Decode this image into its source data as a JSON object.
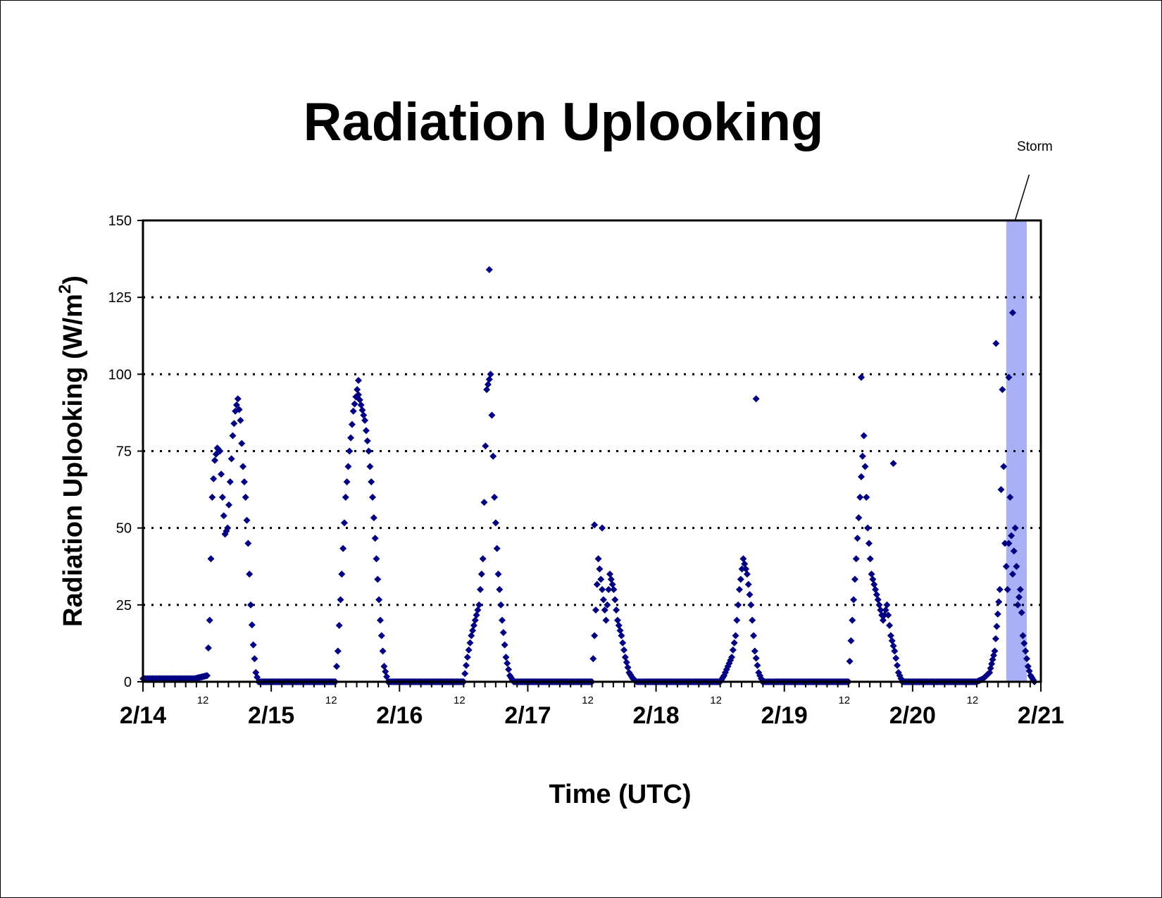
{
  "chart_data": {
    "type": "scatter",
    "title": "Radiation Uplooking",
    "xlabel": "Time (UTC)",
    "ylabel_main": "Radiation Uplooking (W/m",
    "ylabel_sup": "2",
    "ylabel_close": ")",
    "ylim": [
      0,
      150
    ],
    "yticks": [
      "0",
      "25",
      "50",
      "75",
      "100",
      "125",
      "150"
    ],
    "ytick_values": [
      0,
      25,
      50,
      75,
      100,
      125,
      150
    ],
    "xlim_days": [
      0,
      7
    ],
    "date_labels": [
      "2/14",
      "2/15",
      "2/16",
      "2/17",
      "2/18",
      "2/19",
      "2/20",
      "2/21"
    ],
    "hour_label": "12",
    "grid": "dotted horizontal at 25, 50, 75, 100, 125",
    "marker": "diamond",
    "series_color": "#000080",
    "storm_band": {
      "label": "Storm",
      "start_day": 6.73,
      "end_day": 6.89,
      "color": "#aab0f5"
    },
    "series": [
      {
        "values_description": "",
        "x": [
          0.0,
          0.1,
          0.2,
          0.3,
          0.4,
          0.5,
          0.52,
          0.54,
          0.56,
          0.58,
          0.6,
          0.62,
          0.64,
          0.66,
          0.68,
          0.7,
          0.72,
          0.74,
          0.76,
          0.78,
          0.8,
          0.82,
          0.84,
          0.86,
          0.88,
          0.9,
          1.5,
          1.52,
          1.55,
          1.58,
          1.61,
          1.64,
          1.67,
          1.7,
          1.73,
          1.76,
          1.79,
          1.82,
          1.85,
          1.88,
          1.91,
          1.94,
          1.97,
          2.5,
          2.53,
          2.56,
          2.59,
          2.62,
          2.65,
          2.68,
          2.71,
          2.74,
          2.77,
          2.8,
          2.83,
          2.86,
          2.89,
          2.92,
          3.5,
          3.52,
          3.55,
          3.58,
          3.61,
          3.64,
          3.67,
          3.7,
          3.73,
          3.76,
          3.79,
          3.82,
          3.85,
          3.88,
          3.91,
          4.5,
          4.53,
          4.56,
          4.59,
          4.62,
          4.65,
          4.68,
          4.71,
          4.74,
          4.77,
          4.8,
          4.83,
          4.86,
          4.89,
          4.92,
          5.5,
          5.53,
          5.56,
          5.59,
          5.62,
          5.65,
          5.68,
          5.71,
          5.74,
          5.77,
          5.8,
          5.83,
          5.86,
          5.89,
          5.92,
          6.5,
          6.55,
          6.6,
          6.64,
          6.68,
          6.7,
          6.72,
          6.74,
          6.76,
          6.78,
          6.8,
          6.82,
          6.84,
          6.86,
          6.88,
          6.9,
          6.92,
          6.95
        ],
        "y": [
          1,
          1,
          1,
          1,
          1,
          2,
          20,
          60,
          72,
          76,
          75,
          60,
          48,
          50,
          65,
          80,
          88,
          92,
          85,
          70,
          60,
          45,
          25,
          12,
          3,
          0,
          0,
          10,
          35,
          60,
          75,
          88,
          95,
          90,
          85,
          75,
          60,
          40,
          20,
          5,
          0,
          0,
          0,
          0,
          8,
          15,
          20,
          25,
          40,
          95,
          100,
          60,
          35,
          20,
          8,
          2,
          0,
          0,
          0,
          15,
          40,
          30,
          20,
          35,
          30,
          20,
          15,
          8,
          3,
          1,
          0,
          0,
          0,
          0,
          2,
          5,
          8,
          15,
          30,
          40,
          35,
          25,
          10,
          3,
          0,
          0,
          0,
          0,
          0,
          20,
          40,
          60,
          80,
          50,
          35,
          30,
          25,
          20,
          25,
          15,
          10,
          3,
          0,
          0,
          1,
          3,
          10,
          30,
          95,
          45,
          30,
          60,
          35,
          50,
          25,
          30,
          15,
          10,
          5,
          2,
          0
        ]
      }
    ],
    "outliers_x": [
      2.7,
      4.78,
      6.78,
      6.65,
      6.75,
      5.6,
      5.85,
      1.68,
      3.52,
      3.58
    ],
    "outliers_y": [
      134,
      92,
      120,
      110,
      99,
      99,
      71,
      98,
      51,
      50
    ]
  }
}
